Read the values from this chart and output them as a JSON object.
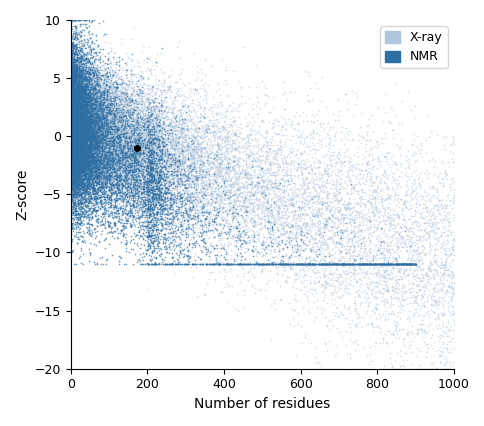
{
  "title": "",
  "xlabel": "Number of residues",
  "ylabel": "Z-score",
  "xlim": [
    0,
    1000
  ],
  "ylim": [
    -20,
    10
  ],
  "xticks": [
    0,
    200,
    400,
    600,
    800,
    1000
  ],
  "yticks": [
    10,
    5,
    0,
    -5,
    -10,
    -15,
    -20
  ],
  "xray_color": "#afc6dc",
  "nmr_color": "#2e6fa3",
  "highlight_x": 173,
  "highlight_y": -0.97,
  "highlight_color": "#000000",
  "seed": 42,
  "n_xray": 30000,
  "n_nmr": 15000,
  "legend_labels": [
    "X-ray",
    "NMR"
  ]
}
